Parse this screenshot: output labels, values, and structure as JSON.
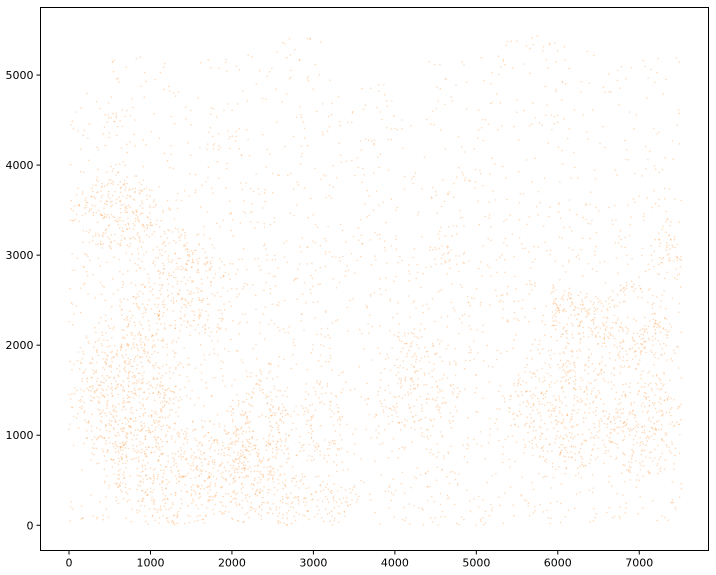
{
  "chart_data": {
    "type": "scatter",
    "title": "",
    "xlabel": "",
    "ylabel": "",
    "xlim": [
      -350,
      7850
    ],
    "ylim": [
      -280,
      5750
    ],
    "x_ticks": [
      0,
      1000,
      2000,
      3000,
      4000,
      5000,
      6000,
      7000
    ],
    "y_ticks": [
      0,
      1000,
      2000,
      3000,
      4000,
      5000
    ],
    "x_tick_labels": [
      "0",
      "1000",
      "2000",
      "3000",
      "4000",
      "5000",
      "6000",
      "7000"
    ],
    "y_tick_labels": [
      "0",
      "1000",
      "2000",
      "3000",
      "4000",
      "5000"
    ],
    "grid": false,
    "legend": "none",
    "series": [
      {
        "color": "#ff7f0e",
        "marker_alpha": 0.3,
        "extent": {
          "x": [
            0,
            7520
          ],
          "y": [
            0,
            5480
          ]
        },
        "dense_regions": [
          {
            "x": 550,
            "y": 3500,
            "rx": 550,
            "ry": 450,
            "w": 2.2
          },
          {
            "x": 1300,
            "y": 2600,
            "rx": 700,
            "ry": 700,
            "w": 1.6
          },
          {
            "x": 700,
            "y": 1500,
            "rx": 700,
            "ry": 800,
            "w": 2.2
          },
          {
            "x": 1400,
            "y": 600,
            "rx": 1000,
            "ry": 600,
            "w": 2.0
          },
          {
            "x": 2350,
            "y": 1050,
            "rx": 400,
            "ry": 700,
            "w": 2.6
          },
          {
            "x": 3080,
            "y": 1100,
            "rx": 300,
            "ry": 500,
            "w": 1.6
          },
          {
            "x": 2800,
            "y": 300,
            "rx": 800,
            "ry": 300,
            "w": 1.5
          },
          {
            "x": 4300,
            "y": 1500,
            "rx": 500,
            "ry": 700,
            "w": 1.0
          },
          {
            "x": 6200,
            "y": 2300,
            "rx": 400,
            "ry": 300,
            "w": 2.4
          },
          {
            "x": 6900,
            "y": 2200,
            "rx": 500,
            "ry": 500,
            "w": 2.2
          },
          {
            "x": 6100,
            "y": 1300,
            "rx": 700,
            "ry": 700,
            "w": 1.8
          },
          {
            "x": 7100,
            "y": 1100,
            "rx": 500,
            "ry": 600,
            "w": 1.8
          },
          {
            "x": 7400,
            "y": 3100,
            "rx": 200,
            "ry": 400,
            "w": 1.6
          },
          {
            "x": 4550,
            "y": 3000,
            "rx": 150,
            "ry": 150,
            "w": 1.8
          },
          {
            "x": 1800,
            "y": 4250,
            "rx": 150,
            "ry": 120,
            "w": 1.2
          },
          {
            "x": 550,
            "y": 4500,
            "rx": 150,
            "ry": 120,
            "w": 1.2
          },
          {
            "x": 1250,
            "y": 4800,
            "rx": 150,
            "ry": 100,
            "w": 1.2
          }
        ],
        "holes": [
          {
            "x": 6950,
            "y": 2350,
            "rx": 180,
            "ry": 180
          },
          {
            "x": 6600,
            "y": 1450,
            "rx": 80,
            "ry": 100
          },
          {
            "x": 3100,
            "y": 1100,
            "rx": 120,
            "ry": 200
          },
          {
            "x": 2350,
            "y": 1200,
            "rx": 100,
            "ry": 250
          },
          {
            "x": 100,
            "y": 600,
            "rx": 120,
            "ry": 250
          },
          {
            "x": 3700,
            "y": 5200,
            "rx": 500,
            "ry": 300
          },
          {
            "x": 4200,
            "y": 4900,
            "rx": 300,
            "ry": 250
          }
        ]
      }
    ]
  }
}
